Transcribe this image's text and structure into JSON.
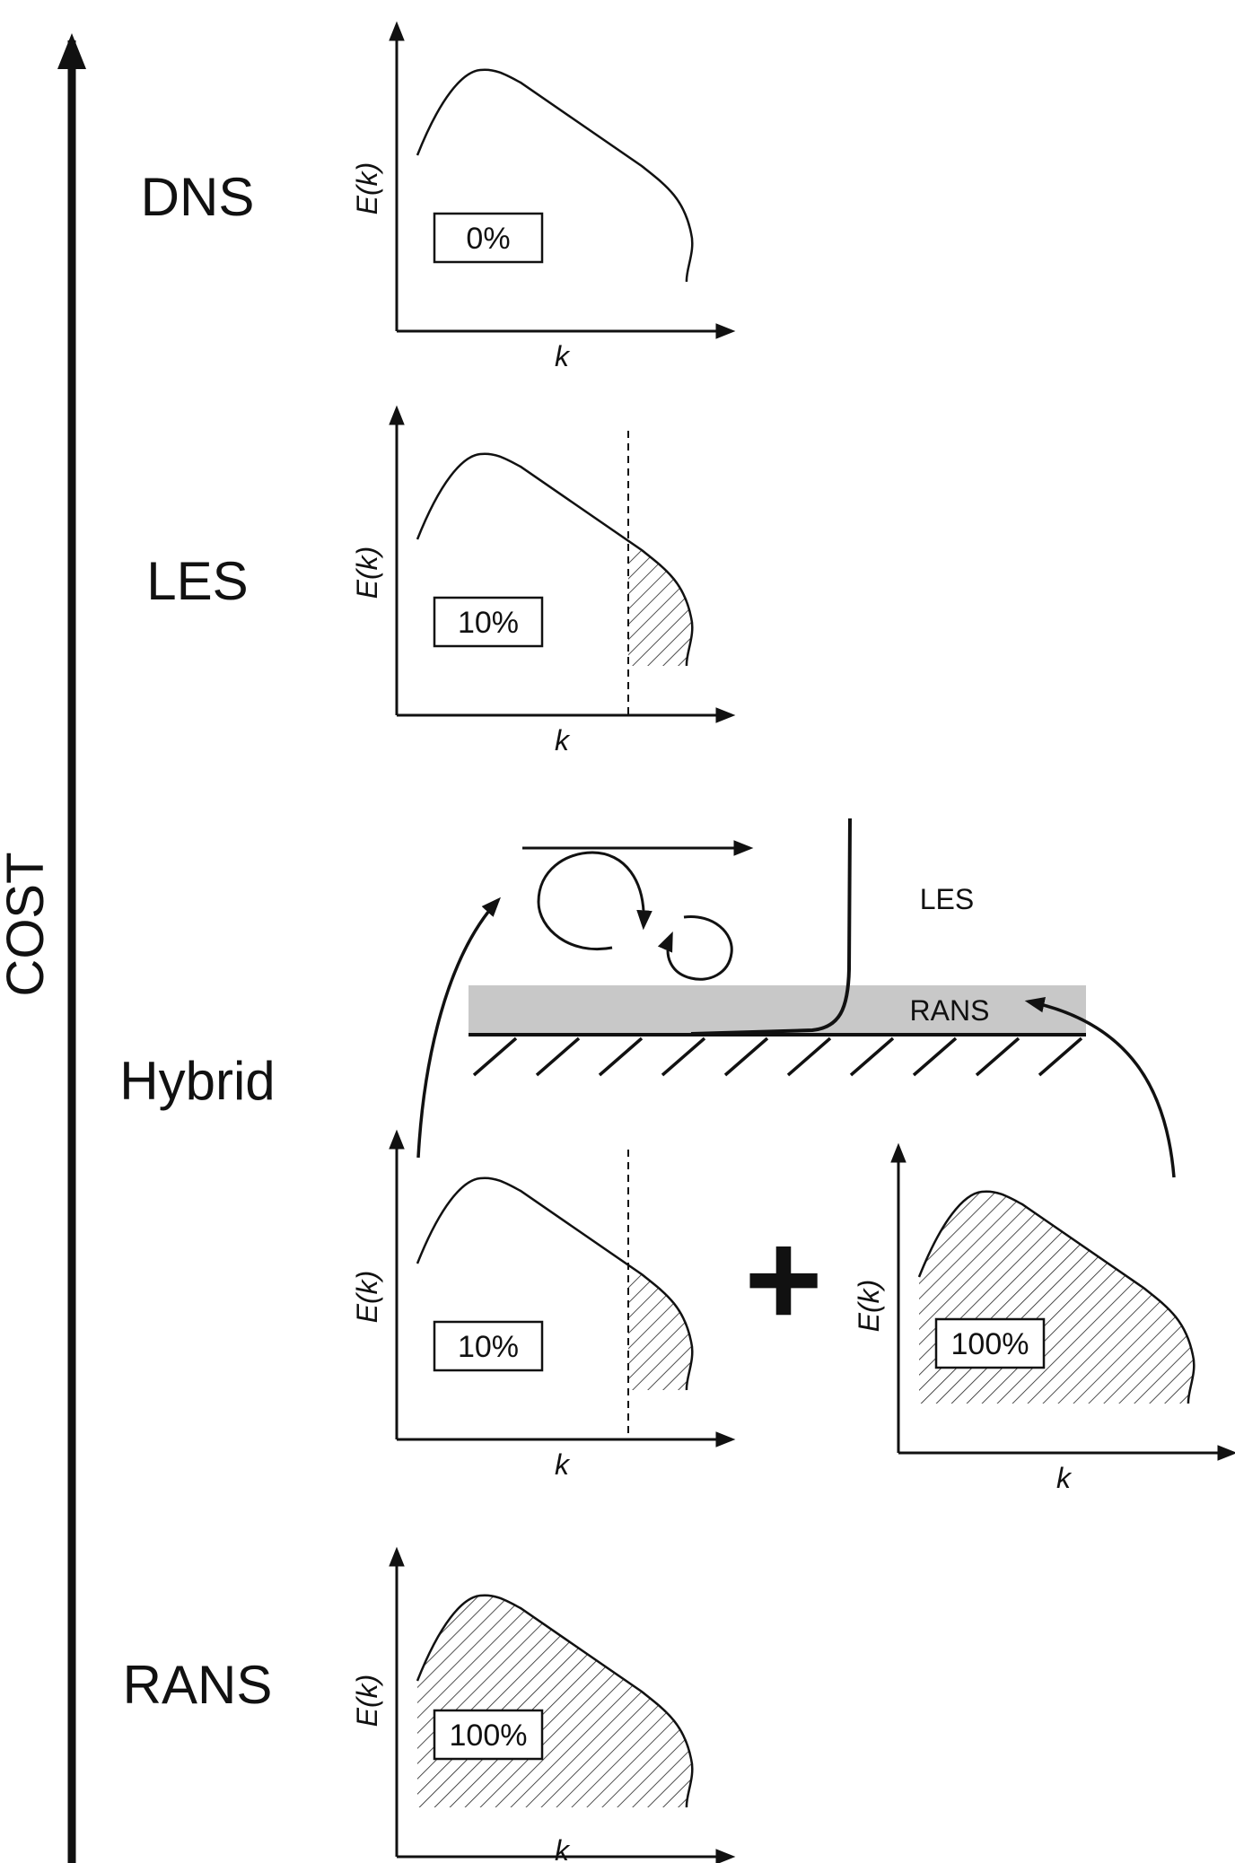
{
  "cost_axis": {
    "label": "COST"
  },
  "plot_axes": {
    "x_label": "k",
    "y_label": "E(k)"
  },
  "rows": [
    {
      "method": "DNS",
      "percent": "0%"
    },
    {
      "method": "LES",
      "percent": "10%"
    },
    {
      "method": "Hybrid",
      "percent_les": "10%",
      "percent_rans": "100%"
    },
    {
      "method": "RANS",
      "percent": "100%"
    }
  ],
  "hybrid_schematic": {
    "les_zone": "LES",
    "rans_zone": "RANS",
    "operator": "+"
  }
}
